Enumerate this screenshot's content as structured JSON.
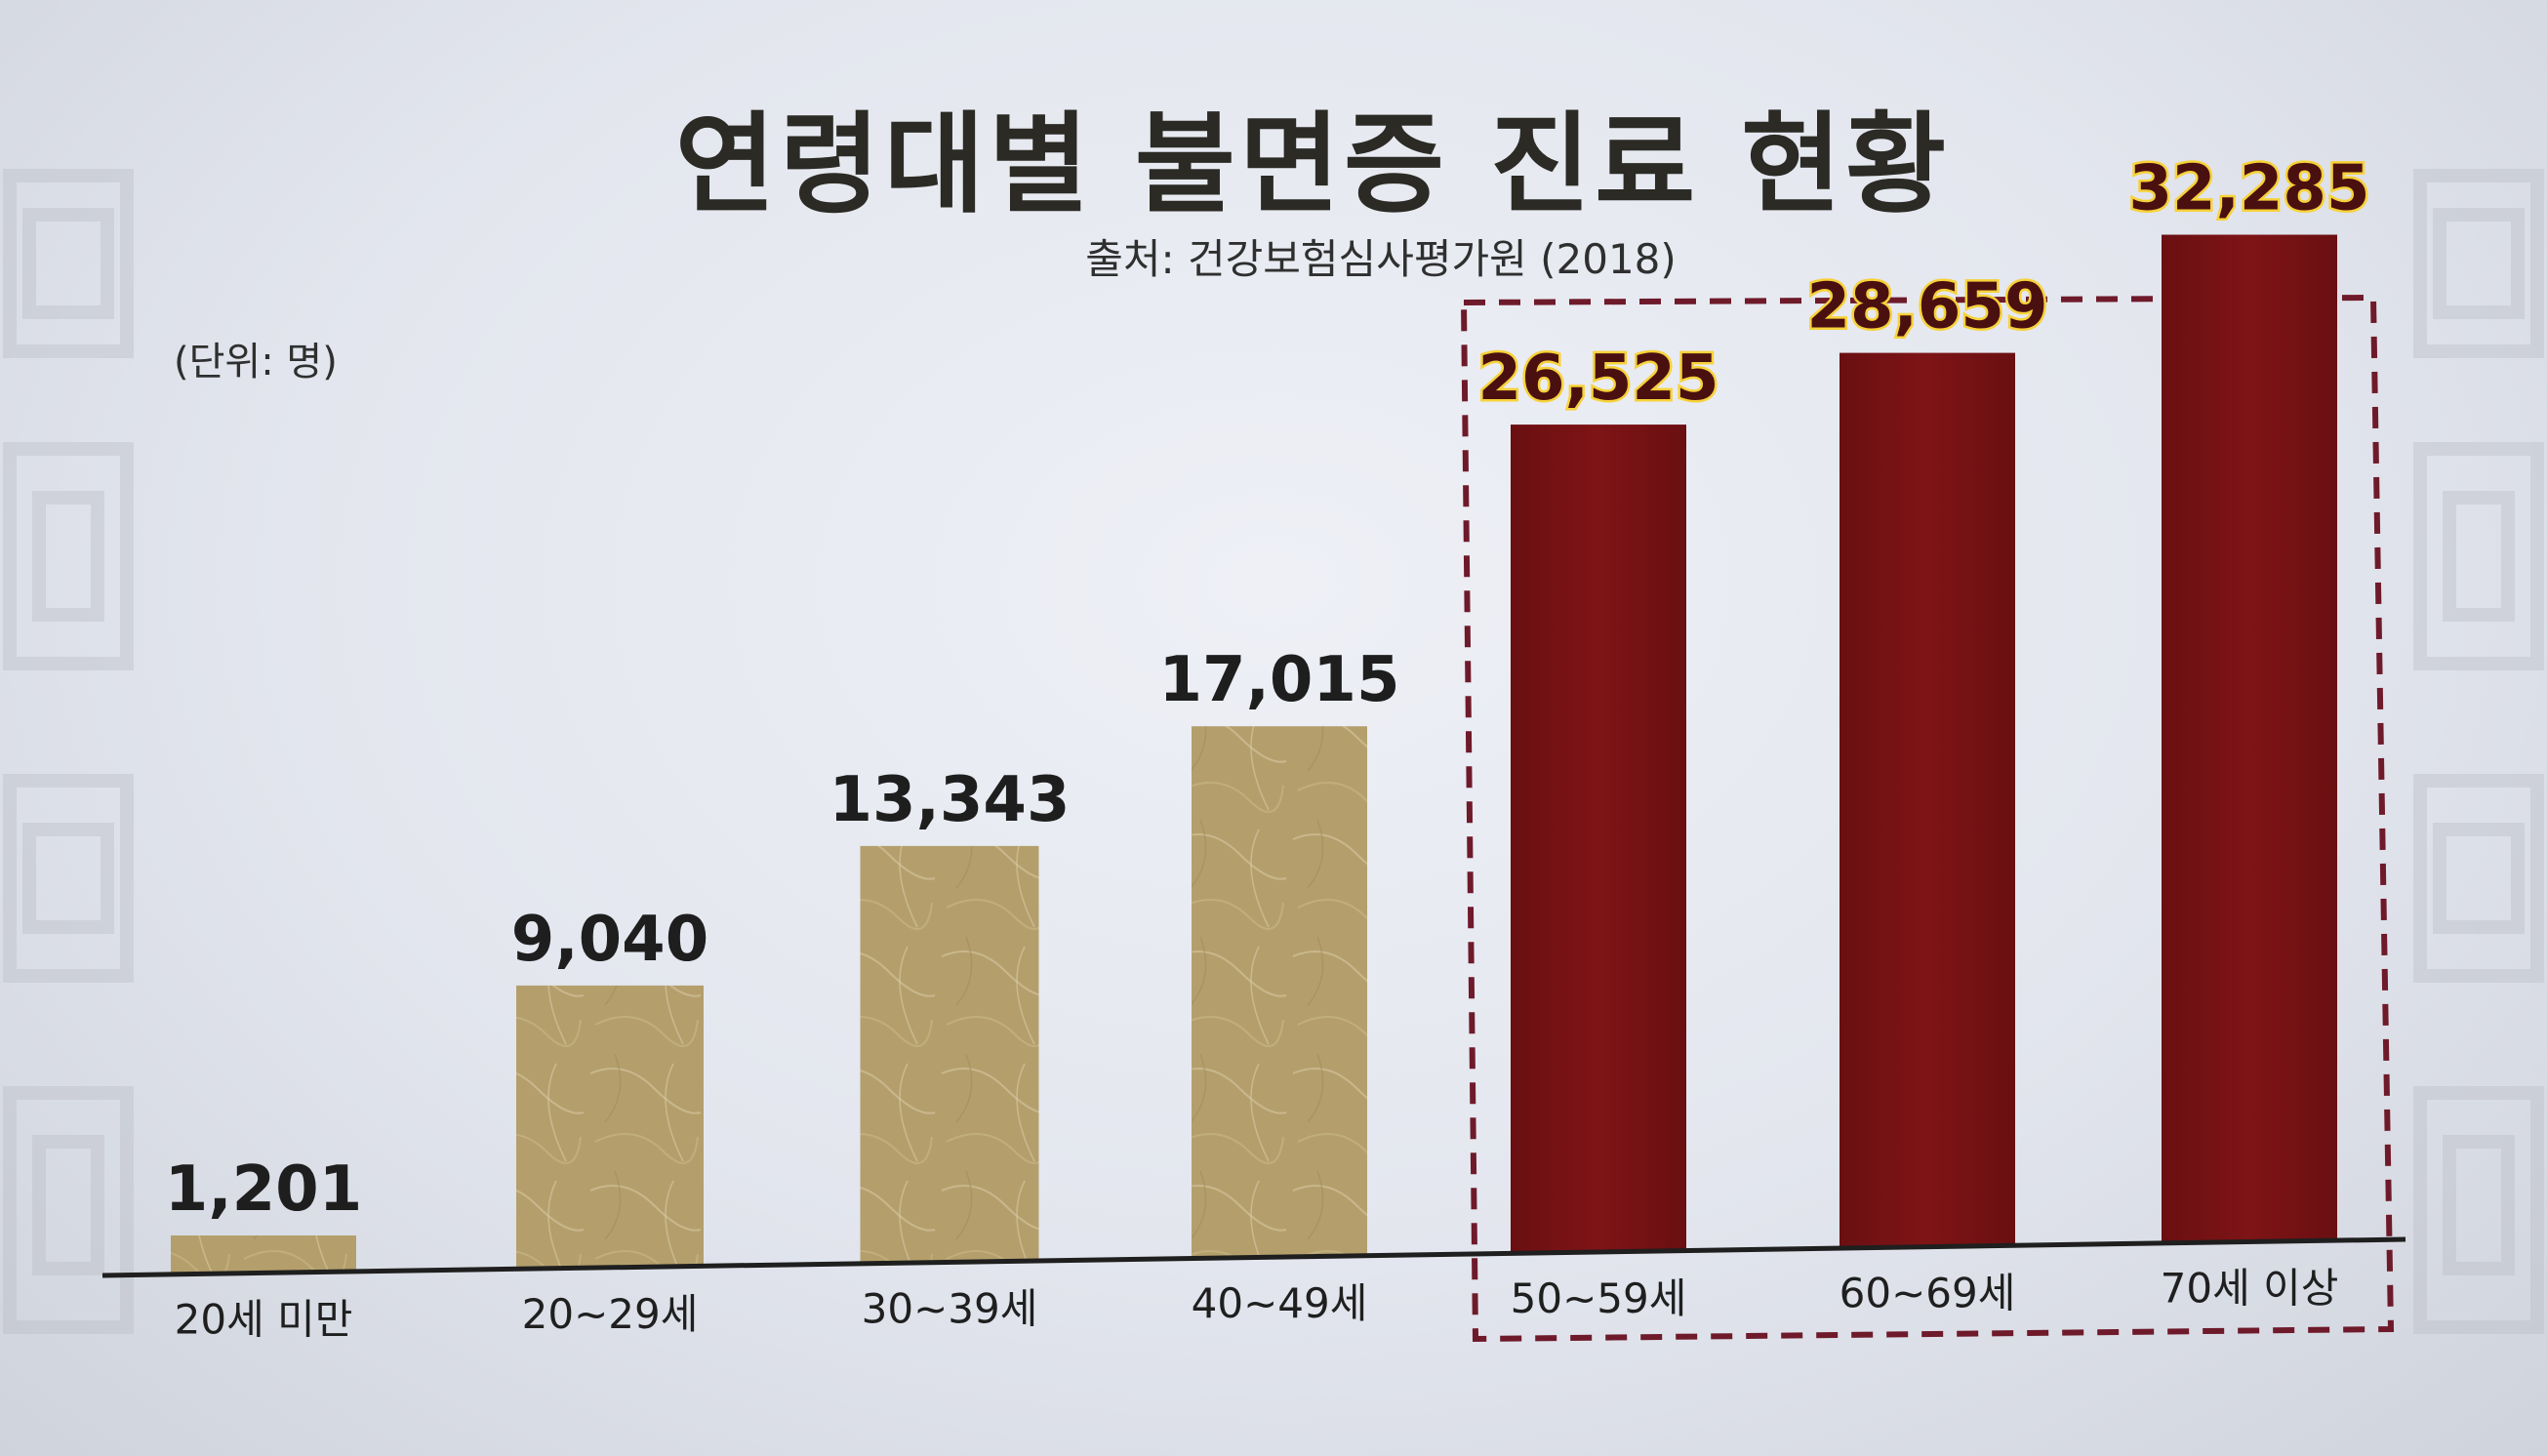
{
  "chart_data": {
    "type": "bar",
    "title": "연령대별 불면증 진료 현황",
    "subtitle": "출처: 건강보험심사평가원 (2018)",
    "unit_label": "(단위: 명)",
    "categories": [
      "20세 미만",
      "20~29세",
      "30~39세",
      "40~49세",
      "50~59세",
      "60~69세",
      "70세 이상"
    ],
    "values": [
      1201,
      9040,
      13343,
      17015,
      26525,
      28659,
      32285
    ],
    "value_labels": [
      "1,201",
      "9,040",
      "13,343",
      "17,015",
      "26,525",
      "28,659",
      "32,285"
    ],
    "highlighted_categories": [
      "50~59세",
      "60~69세",
      "70세 이상"
    ],
    "ylim": [
      0,
      34000
    ],
    "grid": false,
    "colors": {
      "normal_bar": "#b49f6c",
      "highlight_bar": "#7a1214",
      "highlight_label_outline": "#f7d23a",
      "highlight_box": "#6e1a2a"
    }
  }
}
